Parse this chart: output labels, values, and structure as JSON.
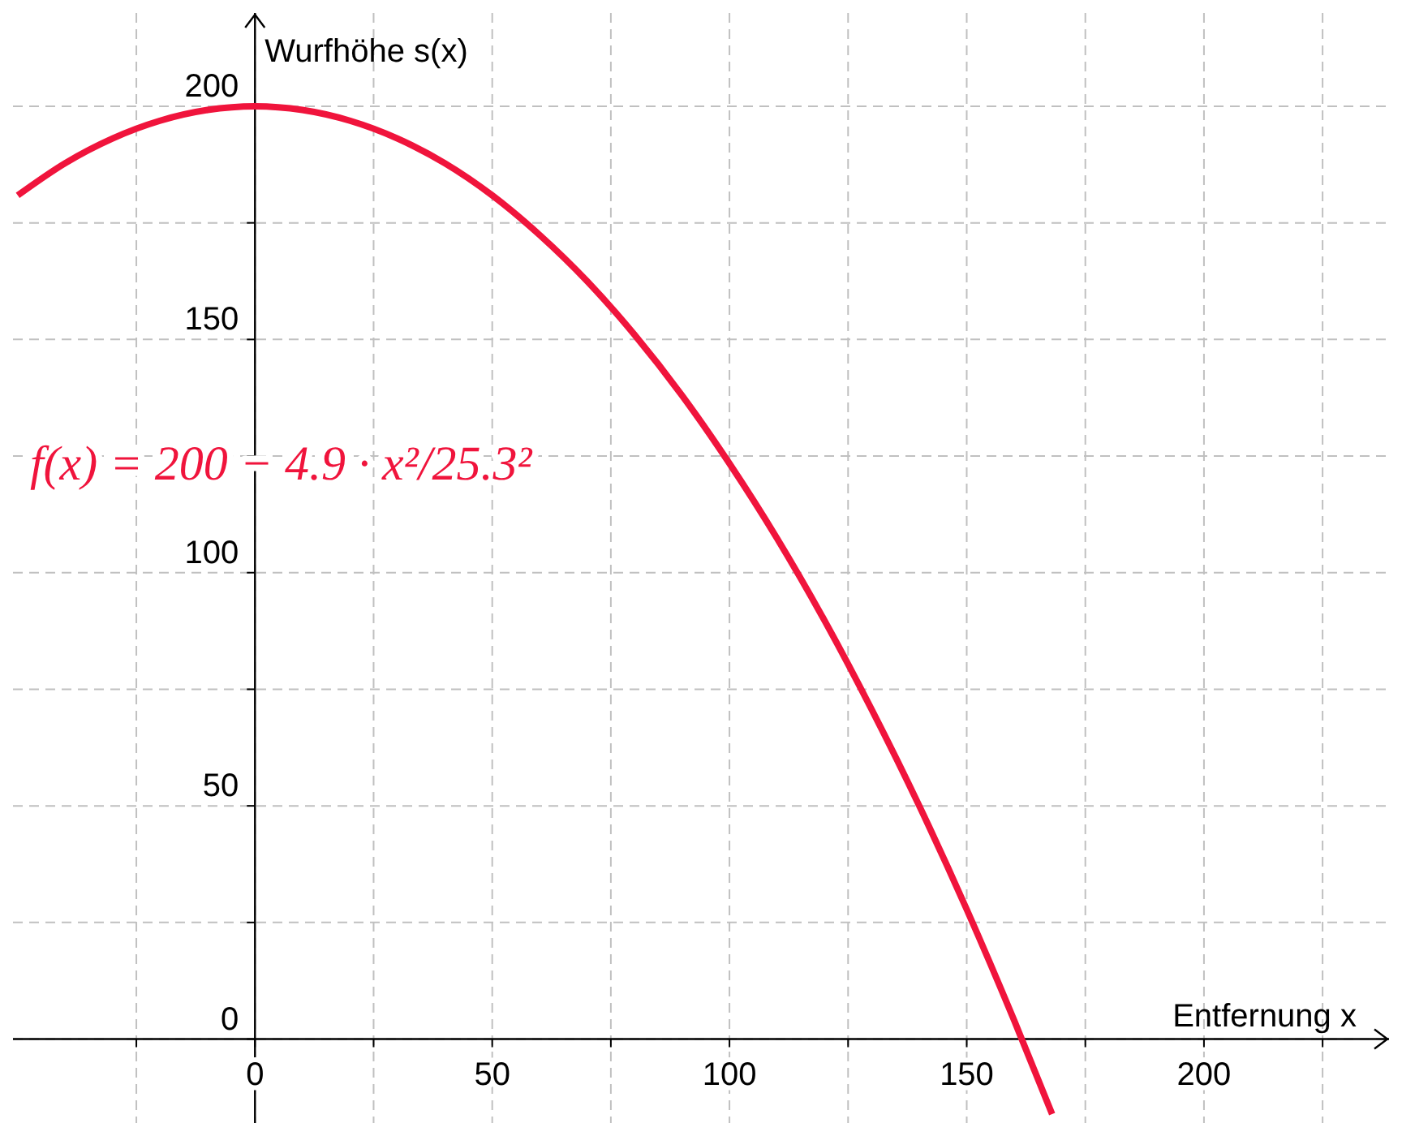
{
  "chart_data": {
    "type": "line",
    "xlabel": "Entfernung x",
    "ylabel": "Wurfhöhe s(x)",
    "x": [
      -50,
      -40,
      -30,
      -20,
      -10,
      0,
      10,
      20,
      30,
      40,
      50,
      60,
      70,
      80,
      90,
      100,
      110,
      120,
      130,
      140,
      150,
      160,
      168
    ],
    "series": [
      {
        "color": "#f0143c",
        "values": [
          180.9,
          187.8,
          193.1,
          196.9,
          199.2,
          200,
          199.2,
          196.9,
          193.1,
          187.8,
          180.9,
          172.4,
          162.5,
          151.0,
          138.0,
          123.4,
          107.4,
          89.8,
          70.6,
          50.0,
          27.8,
          4.0,
          -16.1
        ]
      }
    ],
    "xlim": [
      -51,
      239
    ],
    "ylim": [
      -18,
      220
    ],
    "xticks": [
      {
        "value": -25,
        "label": null
      },
      0,
      {
        "value": 25,
        "label": null
      },
      50,
      {
        "value": 75,
        "label": null
      },
      100,
      {
        "value": 125,
        "label": null
      },
      150,
      {
        "value": 175,
        "label": null
      },
      200,
      {
        "value": 225,
        "label": null
      }
    ],
    "yticks": [
      0,
      {
        "value": 25,
        "label": null
      },
      50,
      {
        "value": 75,
        "label": null
      },
      100,
      {
        "value": 125,
        "label": null
      },
      150,
      {
        "value": 175,
        "label": null
      },
      200
    ],
    "grid": true,
    "marker": "none",
    "line_style": "solid",
    "annotations": [
      "f(x) = 200 − 4.9 · x²/25.3²"
    ]
  }
}
